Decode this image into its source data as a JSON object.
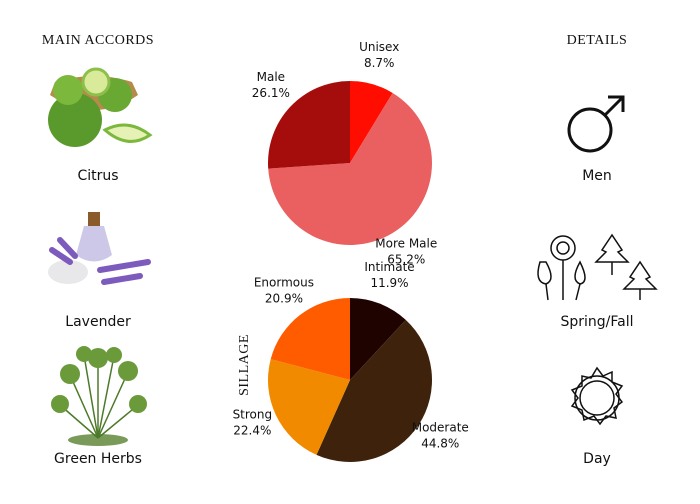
{
  "main_accords": {
    "title": "MAIN ACCORDS",
    "items": [
      "Citrus",
      "Lavender",
      "Green Herbs"
    ]
  },
  "details": {
    "title": "DETAILS",
    "items": [
      "Men",
      "Spring/Fall",
      "Day"
    ]
  },
  "chart_data": [
    {
      "type": "pie",
      "categories": [
        "Unisex",
        "More Male",
        "Male"
      ],
      "values": [
        8.7,
        65.2,
        26.1
      ],
      "value_labels": [
        "8.7%",
        "65.2%",
        "26.1%"
      ],
      "colors": [
        "#ff0d00",
        "#ea5f5f",
        "#a50d0d"
      ]
    },
    {
      "type": "pie",
      "y_label": "SILLAGE",
      "categories": [
        "Intimate",
        "Moderate",
        "Strong",
        "Enormous"
      ],
      "values": [
        11.9,
        44.8,
        22.4,
        20.9
      ],
      "value_labels": [
        "11.9%",
        "44.8%",
        "22.4%",
        "20.9%"
      ],
      "colors": [
        "#1e0300",
        "#3e220b",
        "#f28a00",
        "#ff5c00"
      ]
    }
  ]
}
